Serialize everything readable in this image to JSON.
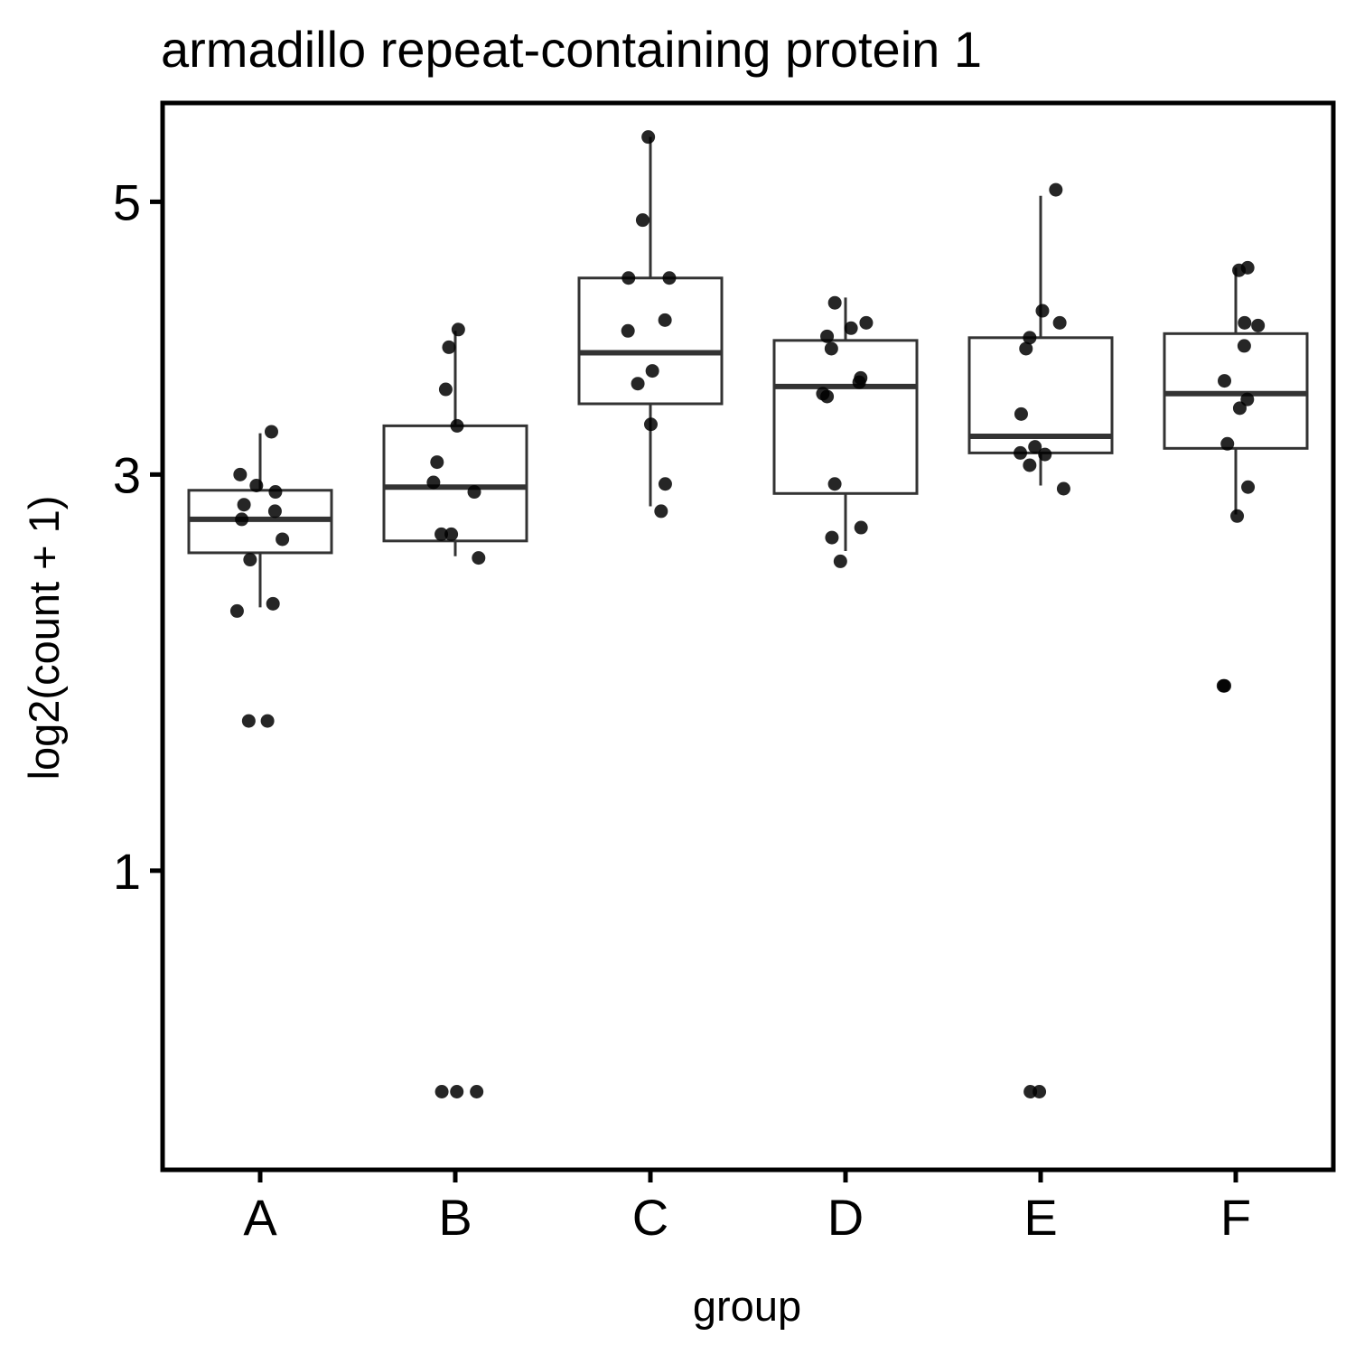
{
  "chart_data": {
    "type": "box",
    "title": "armadillo repeat-containing protein 1",
    "xlabel": "group",
    "ylabel": "log2(count + 1)",
    "y_scale": "sqrt",
    "ylim": [
      0.2,
      5.85
    ],
    "yticks": [
      1,
      3,
      5
    ],
    "ytick_labels": [
      "1",
      "3",
      "5"
    ],
    "grid": false,
    "legend": "none",
    "colors": {
      "box": "#333333",
      "points": "#000000",
      "background": "#ffffff"
    },
    "categories": [
      "A",
      "B",
      "C",
      "D",
      "E",
      "F"
    ],
    "boxes": [
      {
        "group": "A",
        "whisker_low": 2.21,
        "q1": 2.52,
        "median": 2.72,
        "q3": 2.9,
        "whisker_high": 3.27
      },
      {
        "group": "B",
        "whisker_low": 2.5,
        "q1": 2.59,
        "median": 2.92,
        "q3": 3.32,
        "whisker_high": 3.99
      },
      {
        "group": "C",
        "whisker_low": 2.8,
        "q1": 3.47,
        "median": 3.83,
        "q3": 4.39,
        "whisker_high": 5.55
      },
      {
        "group": "D",
        "whisker_low": 2.53,
        "q1": 2.88,
        "median": 3.59,
        "q3": 3.92,
        "whisker_high": 4.24
      },
      {
        "group": "E",
        "whisker_low": 2.93,
        "q1": 3.14,
        "median": 3.25,
        "q3": 3.94,
        "whisker_high": 5.05
      },
      {
        "group": "F",
        "whisker_low": 2.75,
        "q1": 3.17,
        "median": 3.54,
        "q3": 3.97,
        "whisker_high": 4.47
      }
    ],
    "points": [
      {
        "group": "A",
        "values": [
          3.28,
          3.0,
          2.93,
          2.89,
          2.81,
          2.77,
          2.72,
          2.6,
          2.48,
          2.23,
          2.19,
          1.63,
          1.63
        ]
      },
      {
        "group": "B",
        "values": [
          4.0,
          3.87,
          3.57,
          3.32,
          3.08,
          2.95,
          2.89,
          2.63,
          2.63,
          2.49,
          0.35,
          0.35,
          0.35
        ]
      },
      {
        "group": "C",
        "values": [
          5.55,
          4.85,
          4.39,
          4.39,
          4.07,
          3.99,
          3.7,
          3.61,
          3.33,
          2.94,
          2.77
        ]
      },
      {
        "group": "D",
        "values": [
          4.2,
          4.05,
          4.01,
          3.95,
          3.86,
          3.65,
          3.62,
          3.54,
          3.52,
          2.94,
          2.67,
          2.61,
          2.47
        ]
      },
      {
        "group": "E",
        "values": [
          5.1,
          4.14,
          4.05,
          3.94,
          3.86,
          3.4,
          3.18,
          3.14,
          3.13,
          3.06,
          2.91,
          0.35,
          0.35
        ]
      },
      {
        "group": "F",
        "values": [
          4.47,
          4.45,
          4.05,
          4.03,
          3.88,
          3.63,
          3.5,
          3.44,
          3.2,
          2.92,
          2.74,
          1.8,
          1.8
        ]
      }
    ]
  }
}
